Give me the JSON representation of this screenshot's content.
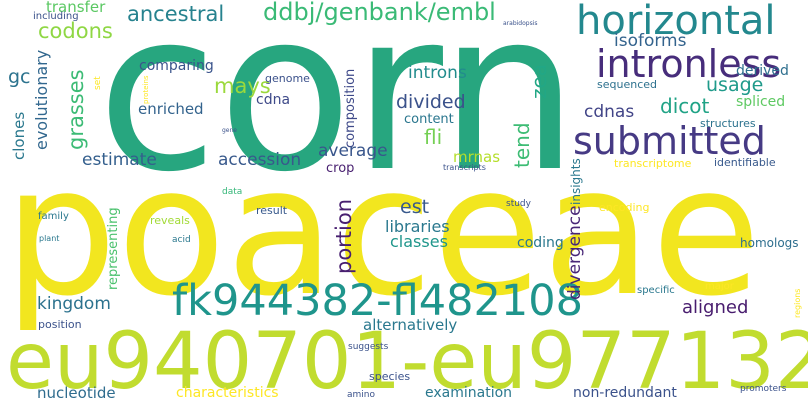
{
  "words": {
    "corn": {
      "text": "corn",
      "color": "#27a67f"
    },
    "poaceae": {
      "text": "poaceae",
      "color": "#f2e61f"
    },
    "eu940701_eu977132": {
      "text": "eu940701-eu977132",
      "color": "#c1dc2f"
    },
    "fk944382_fl482108": {
      "text": "fk944382-fl482108",
      "color": "#1f958c"
    },
    "horizontal": {
      "text": "horizontal",
      "color": "#23888e"
    },
    "intronless": {
      "text": "intronless",
      "color": "#472d7b"
    },
    "submitted": {
      "text": "submitted",
      "color": "#463a84"
    },
    "ddbj_genbank_embl": {
      "text": "ddbj/genbank/embl",
      "color": "#3aba76"
    },
    "ancestral": {
      "text": "ancestral",
      "color": "#26828e"
    },
    "codons": {
      "text": "codons",
      "color": "#8fd744"
    },
    "transfer": {
      "text": "transfer",
      "color": "#5bc863"
    },
    "including": {
      "text": "including",
      "color": "#3b528b"
    },
    "gc": {
      "text": "gc",
      "color": "#2c738e"
    },
    "grasses": {
      "text": "grasses",
      "color": "#3cbb75"
    },
    "evolutionary": {
      "text": "evolutionary",
      "color": "#31678e"
    },
    "clones": {
      "text": "clones",
      "color": "#2a788e"
    },
    "isoforms": {
      "text": "isoforms",
      "color": "#33638d"
    },
    "derived": {
      "text": "derived",
      "color": "#2e6f8e"
    },
    "usage": {
      "text": "usage",
      "color": "#1f9a8a"
    },
    "zea": {
      "text": "zea",
      "color": "#22a785"
    },
    "introns": {
      "text": "introns",
      "color": "#228c8d"
    },
    "mays": {
      "text": "mays",
      "color": "#9bd93c"
    },
    "comparing": {
      "text": "comparing",
      "color": "#3a548c"
    },
    "genome": {
      "text": "genome",
      "color": "#3b518b"
    },
    "cdna": {
      "text": "cdna",
      "color": "#3e4a89"
    },
    "enriched": {
      "text": "enriched",
      "color": "#33638d"
    },
    "divided": {
      "text": "divided",
      "color": "#3b528b"
    },
    "composition": {
      "text": "composition",
      "color": "#3e4989"
    },
    "cdnas": {
      "text": "cdnas",
      "color": "#414487"
    },
    "dicot": {
      "text": "dicot",
      "color": "#20a386"
    },
    "spliced": {
      "text": "spliced",
      "color": "#5ec962"
    },
    "sequenced": {
      "text": "sequenced",
      "color": "#2d718e"
    },
    "structures": {
      "text": "structures",
      "color": "#2c728e"
    },
    "content": {
      "text": "content",
      "color": "#2a768e"
    },
    "fli": {
      "text": "fli",
      "color": "#75d054"
    },
    "tend": {
      "text": "tend",
      "color": "#3dbc74"
    },
    "mrnas": {
      "text": "mrnas",
      "color": "#b5de2b"
    },
    "average": {
      "text": "average",
      "color": "#39568c"
    },
    "accession": {
      "text": "accession",
      "color": "#38598c"
    },
    "estimate": {
      "text": "estimate",
      "color": "#345f8d"
    },
    "crop": {
      "text": "crop",
      "color": "#481f70"
    },
    "transcriptome": {
      "text": "transcriptome",
      "color": "#fde725"
    },
    "identifiable": {
      "text": "identifiable",
      "color": "#38598c"
    },
    "insights": {
      "text": "insights",
      "color": "#2a788e"
    },
    "transcripts": {
      "text": "transcripts",
      "color": "#3b528b"
    },
    "data": {
      "text": "data",
      "color": "#35b779"
    },
    "proteins": {
      "text": "proteins",
      "color": "#fde725"
    },
    "set": {
      "text": "set",
      "color": "#fde725"
    },
    "arabidopsis": {
      "text": "arabidopsis",
      "color": "#3b528b"
    },
    "gene": {
      "text": "gene",
      "color": "#3b528b"
    },
    "result": {
      "text": "result",
      "color": "#38598c"
    },
    "study": {
      "text": "study",
      "color": "#3b528b"
    },
    "encoding": {
      "text": "encoding",
      "color": "#fde725"
    },
    "est": {
      "text": "est",
      "color": "#38598c"
    },
    "portion": {
      "text": "portion",
      "color": "#481f70"
    },
    "libraries": {
      "text": "libraries",
      "color": "#2a788e"
    },
    "classes": {
      "text": "classes",
      "color": "#1f968b"
    },
    "divergence": {
      "text": "divergence",
      "color": "#482677"
    },
    "family": {
      "text": "family",
      "color": "#2a788e"
    },
    "plant": {
      "text": "plant",
      "color": "#2a788e"
    },
    "reveals": {
      "text": "reveals",
      "color": "#a2da37"
    },
    "acid": {
      "text": "acid",
      "color": "#2a788e"
    },
    "representing": {
      "text": "representing",
      "color": "#4ac16d"
    },
    "coding": {
      "text": "coding",
      "color": "#2a788e"
    },
    "homologs": {
      "text": "homologs",
      "color": "#2e6e8e"
    },
    "kingdom": {
      "text": "kingdom",
      "color": "#2c728e"
    },
    "aligned": {
      "text": "aligned",
      "color": "#481c6e"
    },
    "specific": {
      "text": "specific",
      "color": "#2a788e"
    },
    "major": {
      "text": "major",
      "color": "#fde725"
    },
    "regions": {
      "text": "regions",
      "color": "#fde725"
    },
    "alternatively": {
      "text": "alternatively",
      "color": "#2a788e"
    },
    "position": {
      "text": "position",
      "color": "#3b528b"
    },
    "suggests": {
      "text": "suggests",
      "color": "#3b528b"
    },
    "nucleotide": {
      "text": "nucleotide",
      "color": "#2f6c8e"
    },
    "characteristics": {
      "text": "characteristics",
      "color": "#fde725"
    },
    "species": {
      "text": "species",
      "color": "#3b528b"
    },
    "examination": {
      "text": "examination",
      "color": "#2a788e"
    },
    "non_redundant": {
      "text": "non-redundant",
      "color": "#3b528b"
    },
    "amino": {
      "text": "amino",
      "color": "#3b528b"
    },
    "promoters": {
      "text": "promoters",
      "color": "#3b528b"
    }
  }
}
